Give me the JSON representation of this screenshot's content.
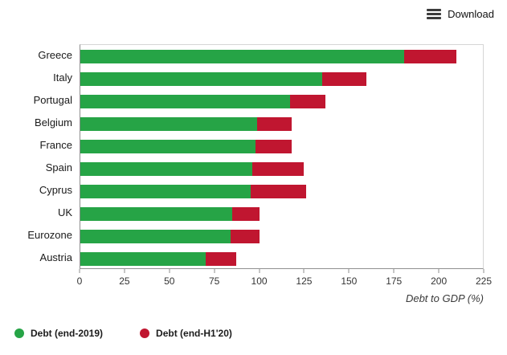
{
  "toolbar": {
    "download_label": "Download"
  },
  "chart_data": {
    "type": "bar",
    "orientation": "horizontal",
    "series_mode": "stacked-increment",
    "title": "",
    "xlabel": "Debt to GDP (%)",
    "xlim": [
      0,
      225
    ],
    "xticks": [
      0,
      25,
      50,
      75,
      100,
      125,
      150,
      175,
      200,
      225
    ],
    "grid": false,
    "legend_position": "bottom-left",
    "categories": [
      "Greece",
      "Italy",
      "Portugal",
      "Belgium",
      "France",
      "Spain",
      "Cyprus",
      "UK",
      "Eurozone",
      "Austria"
    ],
    "series": [
      {
        "name": "Debt (end-2019)",
        "color": "#26a446",
        "values": [
          181,
          135,
          117,
          99,
          98,
          96,
          95,
          85,
          84,
          70
        ]
      },
      {
        "name": "Debt (end-H1'20)",
        "color": "#c01630",
        "values": [
          29,
          25,
          20,
          19,
          20,
          29,
          31,
          15,
          16,
          17
        ]
      }
    ]
  },
  "colors": {
    "plot_border": "#d6d6d6",
    "axis_line": "#8f8f8f",
    "text": "#222222"
  }
}
